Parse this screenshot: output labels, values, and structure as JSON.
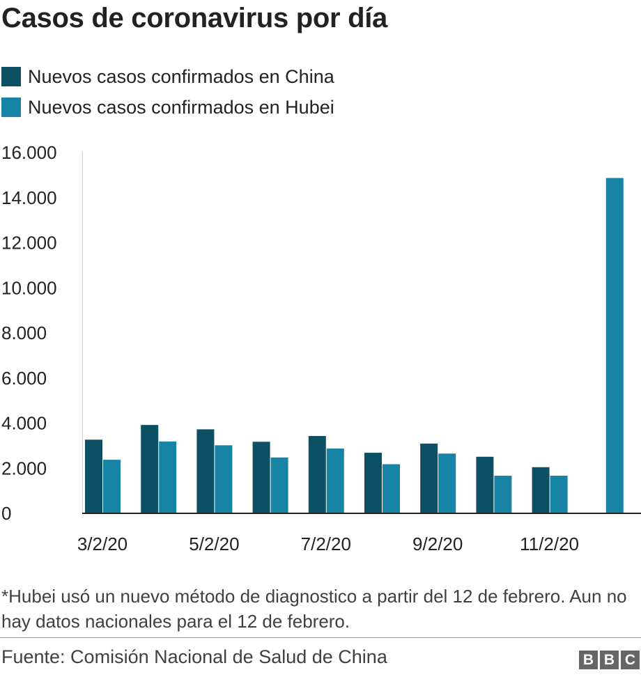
{
  "colors": {
    "china": "#0d4f63",
    "hubei": "#1784a6"
  },
  "chart_data": {
    "type": "bar",
    "title": "Casos de coronavirus por día",
    "categories": [
      "3/2/20",
      "4/2/20",
      "5/2/20",
      "6/2/20",
      "7/2/20",
      "8/2/20",
      "9/2/20",
      "10/2/20",
      "11/2/20",
      "12/2/20"
    ],
    "tick_labels": [
      "3/2/20",
      "",
      "5/2/20",
      "",
      "7/2/20",
      "",
      "9/2/20",
      "",
      "11/2/20",
      ""
    ],
    "series": [
      {
        "name": "Nuevos casos confirmados en China",
        "values": [
          3235,
          3887,
          3694,
          3143,
          3399,
          2656,
          3062,
          2478,
          2015,
          null
        ]
      },
      {
        "name": "Nuevos casos confirmados en Hubei",
        "values": [
          2345,
          3156,
          2987,
          2447,
          2841,
          2147,
          2618,
          1638,
          1638,
          14840
        ]
      }
    ],
    "y_ticks": [
      0,
      2000,
      4000,
      6000,
      8000,
      10000,
      12000,
      14000,
      16000
    ],
    "y_tick_labels": [
      "0",
      "2.000",
      "4.000",
      "6.000",
      "8.000",
      "10.000",
      "12.000",
      "14.000",
      "16.000"
    ],
    "ylim": [
      0,
      16000
    ],
    "xlabel": "",
    "ylabel": "",
    "legend_position": "top-left"
  },
  "footnote": "*Hubei usó un nuevo método de diagnostico a partir del 12 de febrero. Aun no hay datos nacionales para el 12 de febrero.",
  "source": "Fuente: Comisión Nacional de Salud de China",
  "logo": [
    "B",
    "B",
    "C"
  ]
}
